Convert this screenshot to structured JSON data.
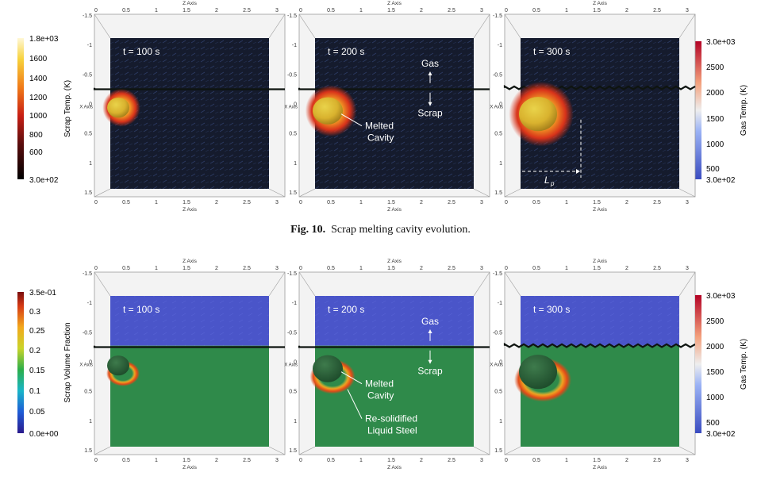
{
  "figure10": {
    "caption_label": "Fig. 10.",
    "caption_text": "Scrap melting cavity evolution.",
    "left_colorbar": {
      "title": "Scrap Temp. (K)",
      "ticks": [
        "1.8e+03",
        "1600",
        "1400",
        "1200",
        "1000",
        "800",
        "600",
        "3.0e+02"
      ],
      "colormap": "black-red-orange-yellow"
    },
    "right_colorbar": {
      "title": "Gas Temp. (K)",
      "ticks": [
        "3.0e+03",
        "2500",
        "2000",
        "1500",
        "1000",
        "500",
        "3.0e+02"
      ],
      "colormap": "blue-white-red"
    },
    "panels": [
      {
        "time_label": "t = 100 s"
      },
      {
        "time_label": "t = 200 s",
        "gas_label": "Gas",
        "scrap_label": "Scrap",
        "cavity_label_1": "Melted",
        "cavity_label_2": "Cavity"
      },
      {
        "time_label": "t = 300 s",
        "lp_label": "L",
        "lp_sub": "p"
      }
    ]
  },
  "figure11": {
    "left_colorbar": {
      "title": "Scrap Volume Fraction",
      "ticks": [
        "3.5e-01",
        "0.3",
        "0.25",
        "0.2",
        "0.15",
        "0.1",
        "0.05",
        "0.0e+00"
      ],
      "colormap": "jet"
    },
    "right_colorbar": {
      "title": "Gas Temp. (K)",
      "ticks": [
        "3.0e+03",
        "2500",
        "2000",
        "1500",
        "1000",
        "500",
        "3.0e+02"
      ],
      "colormap": "blue-white-red"
    },
    "panels": [
      {
        "time_label": "t = 100 s"
      },
      {
        "time_label": "t = 200 s",
        "gas_label": "Gas",
        "scrap_label": "Scrap",
        "cavity_label_1": "Melted",
        "cavity_label_2": "Cavity",
        "resolid_label_1": "Re-solidified",
        "resolid_label_2": "Liquid Steel"
      },
      {
        "time_label": "t = 300 s"
      }
    ]
  },
  "axes": {
    "top_title": "Z Axis",
    "bottom_title": "Z Axis",
    "left_title": "X Axis",
    "z_ticks": [
      "0",
      "0.5",
      "1",
      "1.5",
      "2",
      "2.5",
      "3"
    ],
    "x_ticks": [
      "-1.5",
      "-1",
      "-0.5",
      "0",
      "0.5",
      "1",
      "1.5"
    ]
  },
  "colors": {
    "gas_blue_fig11": "#4a55c9",
    "liquid_green_fig11": "#2f8a4a",
    "dark_background_fig10": "#141a2a"
  }
}
